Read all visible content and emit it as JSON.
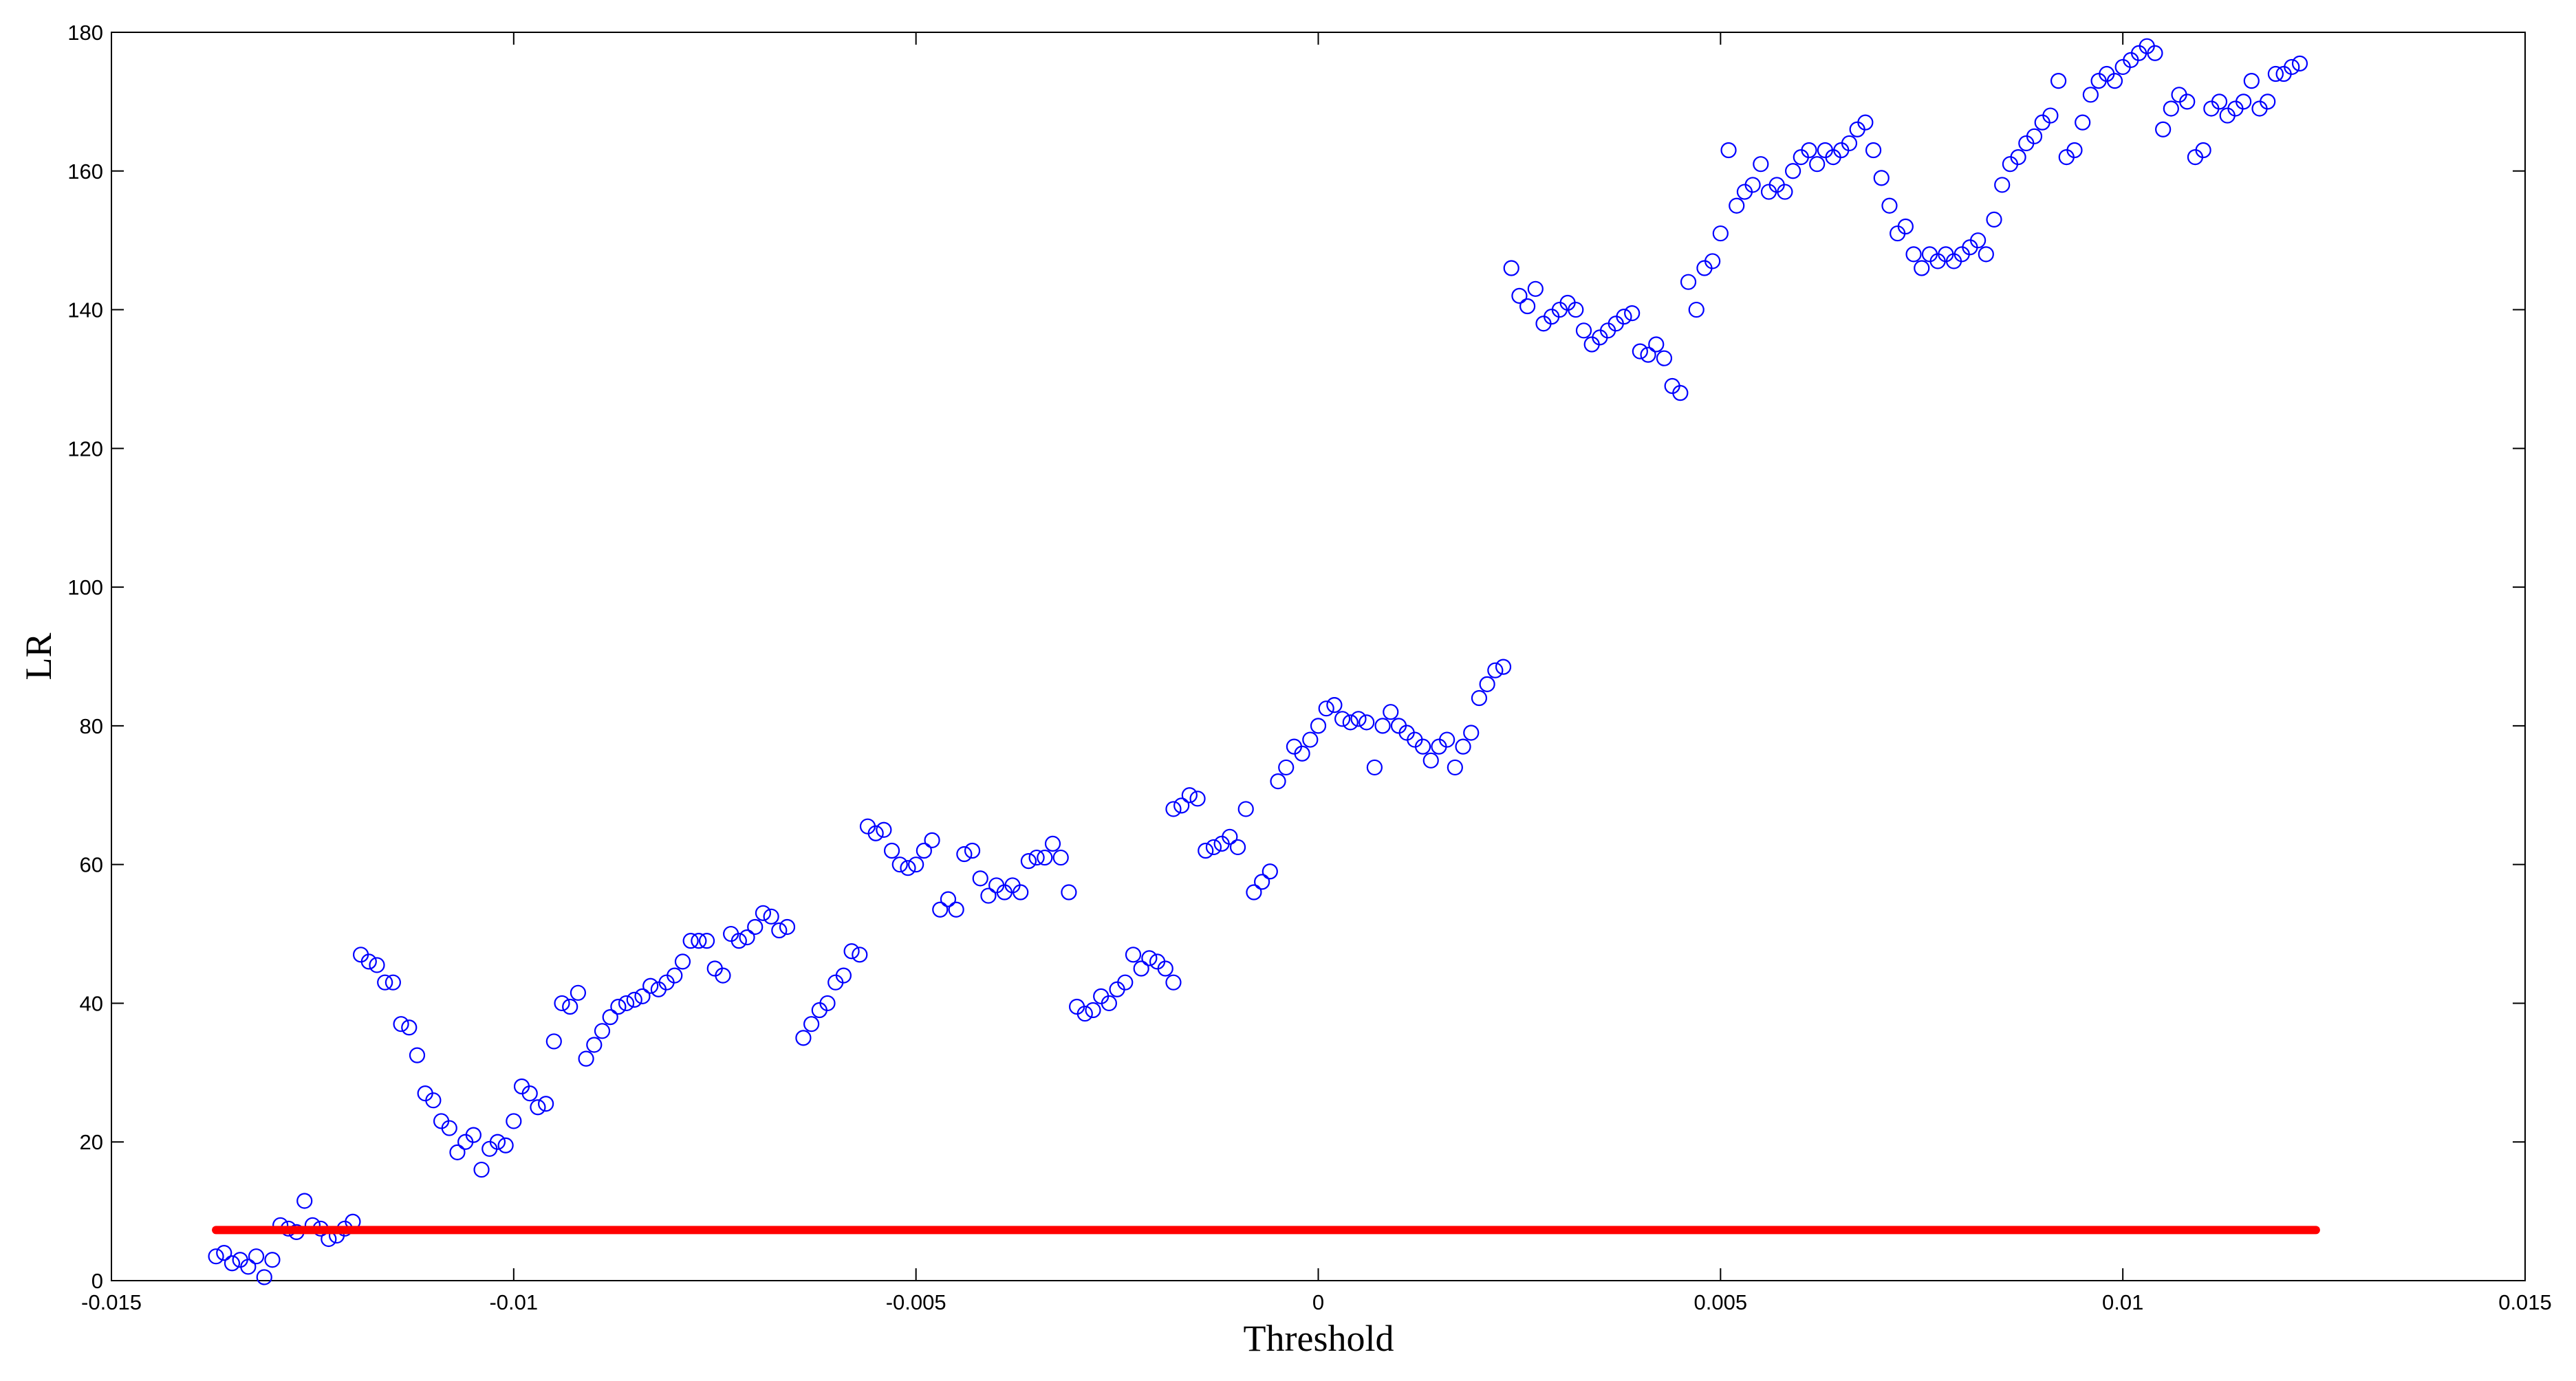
{
  "chart_data": {
    "type": "scatter",
    "x_label": "Threshold",
    "y_label": "LR",
    "xlim": [
      -0.015,
      0.015
    ],
    "xticks": [
      -0.015,
      -0.01,
      -0.005,
      0,
      0.005,
      0.01,
      0.015
    ],
    "ylim": [
      0,
      180
    ],
    "yticks": [
      0,
      20,
      40,
      60,
      80,
      100,
      120,
      140,
      160,
      180
    ],
    "grid": false,
    "series": [
      {
        "color": "#0000ff",
        "mode": "markers",
        "x": [
          -0.0137,
          -0.0136,
          -0.0135,
          -0.0134,
          -0.0133,
          -0.0132,
          -0.0131,
          -0.013,
          -0.0129,
          -0.0128,
          -0.0127,
          -0.0126,
          -0.0125,
          -0.0124,
          -0.0123,
          -0.0122,
          -0.0121,
          -0.012,
          -0.0119,
          -0.0118,
          -0.0117,
          -0.0116,
          -0.0115,
          -0.0114,
          -0.0113,
          -0.0112,
          -0.0111,
          -0.011,
          -0.0109,
          -0.0108,
          -0.0107,
          -0.0106,
          -0.0105,
          -0.0104,
          -0.0103,
          -0.0102,
          -0.0101,
          -0.01,
          -0.0099,
          -0.0098,
          -0.0097,
          -0.0096,
          -0.0095,
          -0.0094,
          -0.0093,
          -0.0092,
          -0.0091,
          -0.009,
          -0.0089,
          -0.0088,
          -0.0087,
          -0.0086,
          -0.0085,
          -0.0084,
          -0.0083,
          -0.0082,
          -0.0081,
          -0.008,
          -0.0079,
          -0.0078,
          -0.0077,
          -0.0076,
          -0.0075,
          -0.0074,
          -0.0073,
          -0.0072,
          -0.0071,
          -0.007,
          -0.0069,
          -0.0068,
          -0.0067,
          -0.0066,
          -0.0064,
          -0.0063,
          -0.0062,
          -0.0061,
          -0.006,
          -0.0059,
          -0.0058,
          -0.0057,
          -0.0056,
          -0.0055,
          -0.0054,
          -0.0053,
          -0.0052,
          -0.0051,
          -0.005,
          -0.0049,
          -0.0048,
          -0.0047,
          -0.0046,
          -0.0045,
          -0.0044,
          -0.0043,
          -0.0042,
          -0.0041,
          -0.004,
          -0.0039,
          -0.0038,
          -0.0037,
          -0.0036,
          -0.0035,
          -0.0034,
          -0.0033,
          -0.0032,
          -0.0031,
          -0.003,
          -0.0029,
          -0.0028,
          -0.0027,
          -0.0026,
          -0.0025,
          -0.0024,
          -0.0023,
          -0.0022,
          -0.0021,
          -0.002,
          -0.0019,
          -0.0018,
          -0.0018,
          -0.0017,
          -0.0016,
          -0.0015,
          -0.0014,
          -0.0013,
          -0.0012,
          -0.0011,
          -0.001,
          -0.0009,
          -0.0008,
          -0.0007,
          -0.0006,
          -0.0005,
          -0.0004,
          -0.0003,
          -0.0002,
          -0.0001,
          0,
          0.0001,
          0.0002,
          0.0003,
          0.0004,
          0.0005,
          0.0006,
          0.0007,
          0.0008,
          0.0009,
          0.001,
          0.0011,
          0.0012,
          0.0013,
          0.0014,
          0.0015,
          0.0016,
          0.0017,
          0.0018,
          0.0019,
          0.002,
          0.0021,
          0.0022,
          0.0023,
          0.0024,
          0.0025,
          0.0026,
          0.0027,
          0.0028,
          0.0029,
          0.003,
          0.0031,
          0.0032,
          0.0033,
          0.0034,
          0.0035,
          0.0036,
          0.0037,
          0.0038,
          0.0039,
          0.004,
          0.0041,
          0.0042,
          0.0043,
          0.0044,
          0.0045,
          0.0046,
          0.0047,
          0.0048,
          0.0049,
          0.005,
          0.0051,
          0.0052,
          0.0053,
          0.0054,
          0.0055,
          0.0056,
          0.0057,
          0.0058,
          0.0059,
          0.006,
          0.0061,
          0.0062,
          0.0063,
          0.0064,
          0.0065,
          0.0066,
          0.0067,
          0.0068,
          0.0069,
          0.007,
          0.0071,
          0.0072,
          0.0073,
          0.0074,
          0.0075,
          0.0076,
          0.0077,
          0.0078,
          0.0079,
          0.008,
          0.0081,
          0.0082,
          0.0083,
          0.0084,
          0.0085,
          0.0086,
          0.0087,
          0.0088,
          0.0089,
          0.009,
          0.0091,
          0.0092,
          0.0093,
          0.0094,
          0.0095,
          0.0096,
          0.0097,
          0.0098,
          0.0099,
          0.01,
          0.0101,
          0.0102,
          0.0103,
          0.0104,
          0.0105,
          0.0106,
          0.0107,
          0.0108,
          0.0109,
          0.011,
          0.0111,
          0.0112,
          0.0113,
          0.0114,
          0.0115,
          0.0116,
          0.0117,
          0.0118,
          0.0119,
          0.012,
          0.0121,
          0.0122
        ],
        "values": [
          3.5,
          4,
          2.5,
          3,
          2,
          3.5,
          0.5,
          3,
          8,
          7.5,
          7,
          11.5,
          8,
          7.5,
          6,
          6.5,
          7.5,
          8.5,
          47,
          46,
          45.5,
          43,
          43,
          37,
          36.5,
          32.5,
          27,
          26,
          23,
          22,
          18.5,
          20,
          21,
          16,
          19,
          20,
          19.5,
          23,
          28,
          27,
          25,
          25.5,
          34.5,
          40,
          39.5,
          41.5,
          32,
          34,
          36,
          38,
          39.5,
          40,
          40.5,
          41,
          42.5,
          42,
          43,
          44,
          46,
          49,
          49,
          49,
          45,
          44,
          50,
          49,
          49.5,
          51,
          53,
          52.5,
          50.5,
          51,
          35,
          37,
          39,
          40,
          43,
          44,
          47.5,
          47,
          65.5,
          64.5,
          65,
          62,
          60,
          59.5,
          60,
          62,
          63.5,
          53.5,
          55,
          53.5,
          61.5,
          62,
          58,
          55.5,
          57,
          56,
          57,
          56,
          60.5,
          61,
          61,
          63,
          61,
          56,
          39.5,
          38.5,
          39,
          41,
          40,
          42,
          43,
          47,
          45,
          46.5,
          46,
          45,
          43,
          68,
          68.5,
          70,
          69.5,
          62,
          62.5,
          63,
          64,
          62.5,
          68,
          56,
          57.5,
          59,
          72,
          74,
          77,
          76,
          78,
          80,
          82.5,
          83,
          81,
          80.5,
          81,
          80.5,
          74,
          80,
          82,
          80,
          79,
          78,
          77,
          75,
          77,
          78,
          74,
          77,
          79,
          84,
          86,
          88,
          88.5,
          146,
          142,
          140.5,
          143,
          138,
          139,
          140,
          141,
          140,
          137,
          135,
          136,
          137,
          138,
          139,
          139.5,
          134,
          133.5,
          135,
          133,
          129,
          128,
          144,
          140,
          146,
          147,
          151,
          163,
          155,
          157,
          158,
          161,
          157,
          158,
          157,
          160,
          162,
          163,
          161,
          163,
          162,
          163,
          164,
          166,
          167,
          163,
          159,
          155,
          151,
          152,
          148,
          146,
          148,
          147,
          148,
          147,
          148,
          149,
          150,
          148,
          153,
          158,
          161,
          162,
          164,
          165,
          167,
          168,
          173,
          162,
          163,
          167,
          171,
          173,
          174,
          173,
          175,
          176,
          177,
          178,
          177,
          166,
          169,
          171,
          170,
          162,
          163,
          169,
          170,
          168,
          169,
          170,
          173,
          169,
          170,
          174,
          174,
          175,
          175.5
        ]
      },
      {
        "color": "#ff0000",
        "mode": "line",
        "x": [
          -0.0137,
          0.0124
        ],
        "values": [
          7.3,
          7.3
        ]
      }
    ]
  }
}
